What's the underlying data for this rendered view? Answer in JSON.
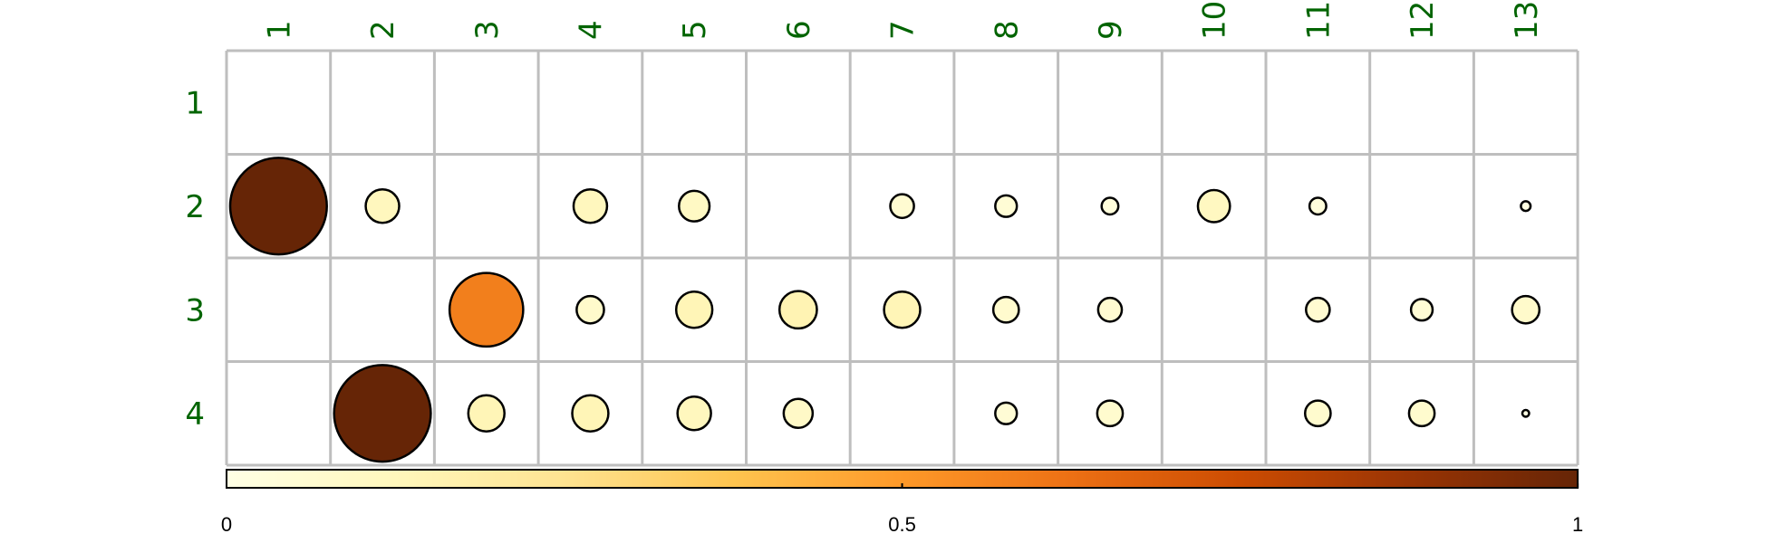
{
  "chart_data": {
    "type": "heatmap",
    "title": "",
    "xlabel": "",
    "ylabel": "",
    "columns": [
      "1",
      "2",
      "3",
      "4",
      "5",
      "6",
      "7",
      "8",
      "9",
      "10",
      "11",
      "12",
      "13"
    ],
    "rows": [
      "1",
      "2",
      "3",
      "4"
    ],
    "label_color": "#006400",
    "grid_color": "#bebebe",
    "colorbar": {
      "range": [
        0,
        1
      ],
      "ticks": [
        "0",
        "0.5",
        "1"
      ],
      "colors": [
        "#FFFFE5",
        "#FFF7BC",
        "#FEE391",
        "#FEC44F",
        "#FE9929",
        "#EC7014",
        "#CC4C02",
        "#993404",
        "#662506"
      ]
    },
    "values": [
      [
        null,
        null,
        null,
        null,
        null,
        null,
        null,
        null,
        null,
        null,
        null,
        null,
        null
      ],
      [
        1.0,
        0.12,
        null,
        0.12,
        0.1,
        null,
        0.06,
        0.05,
        0.03,
        0.11,
        0.03,
        null,
        0.01
      ],
      [
        null,
        null,
        0.58,
        0.08,
        0.14,
        0.15,
        0.14,
        0.07,
        0.06,
        null,
        0.06,
        0.05,
        0.08
      ],
      [
        null,
        1.0,
        0.14,
        0.14,
        0.12,
        0.09,
        null,
        0.05,
        0.07,
        null,
        0.07,
        0.07,
        0.005
      ]
    ]
  }
}
